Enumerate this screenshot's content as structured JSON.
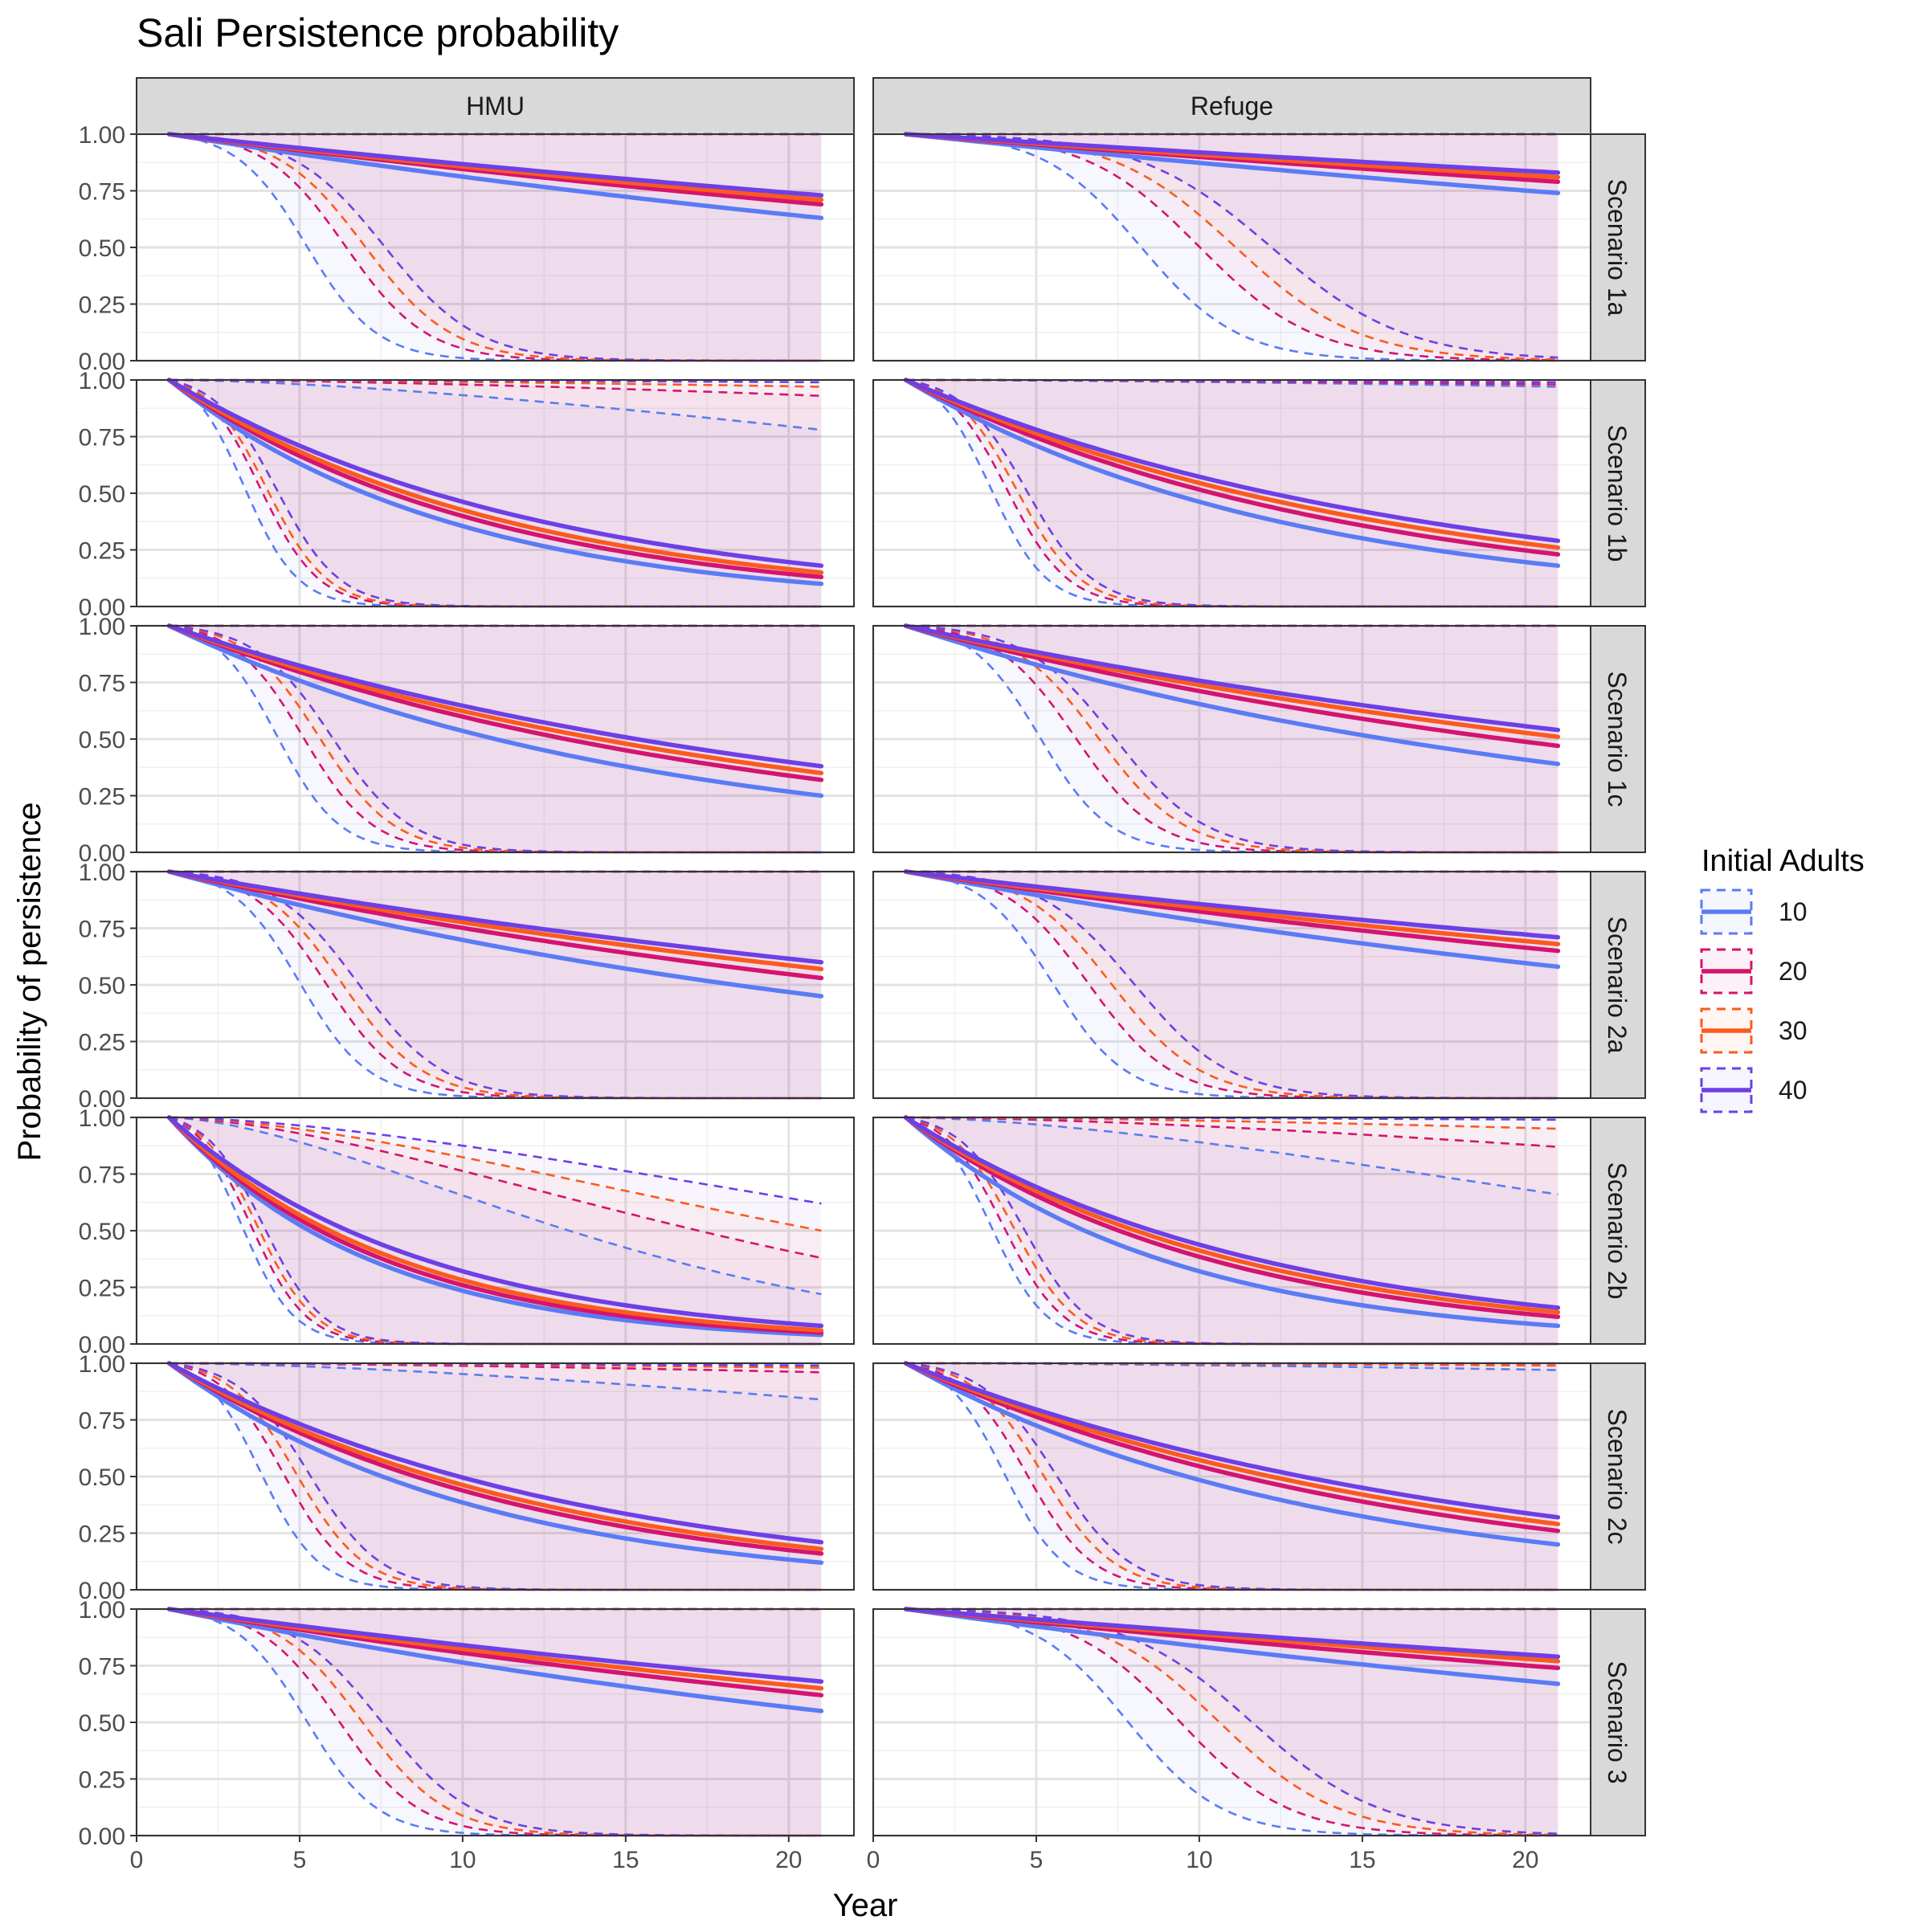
{
  "chart_data": {
    "type": "line",
    "title": "Sali Persistence probability",
    "xlabel": "Year",
    "ylabel": "Probability of persistence",
    "xlim": [
      0,
      22
    ],
    "ylim": [
      0,
      1
    ],
    "x_ticks": [
      0,
      5,
      10,
      15,
      20
    ],
    "y_ticks": [
      "0.00",
      "0.25",
      "0.50",
      "0.75",
      "1.00"
    ],
    "x_range": [
      1,
      21
    ],
    "grid": true,
    "legend_placement": "right",
    "legend": {
      "title": "Initial Adults",
      "entries": [
        {
          "label": "10",
          "color": "#5B7BF5"
        },
        {
          "label": "20",
          "color": "#D4146E"
        },
        {
          "label": "30",
          "color": "#FB5A1E"
        },
        {
          "label": "40",
          "color": "#6E3FE6"
        }
      ]
    },
    "columns": [
      "HMU",
      "Refuge"
    ],
    "rows": [
      "Scenario 1a",
      "Scenario 1b",
      "Scenario 1c",
      "Scenario 2a",
      "Scenario 2b",
      "Scenario 2c",
      "Scenario 3"
    ],
    "series_style": "solid line = mean persistence, dashed lines = upper/lower bounds, shaded ribbon between bounds",
    "series_meta": [
      {
        "init": 10,
        "mean_half_life_factor": 0.72,
        "lower_half_life_factor": 0.75
      },
      {
        "init": 20,
        "mean_half_life_factor": 0.9,
        "lower_half_life_factor": 0.9
      },
      {
        "init": 30,
        "mean_half_life_factor": 0.98,
        "lower_half_life_factor": 1.0
      },
      {
        "init": 40,
        "mean_half_life_factor": 1.06,
        "lower_half_life_factor": 1.1
      }
    ],
    "panels": [
      {
        "row": "Scenario 1a",
        "col": "HMU",
        "mean_at_21": [
          0.63,
          0.69,
          0.71,
          0.73
        ],
        "lower_mid_year": [
          5.2,
          6.4,
          7.0,
          7.6
        ],
        "upper_at_21": [
          1.0,
          1.0,
          1.0,
          1.0
        ]
      },
      {
        "row": "Scenario 1a",
        "col": "Refuge",
        "mean_at_21": [
          0.74,
          0.79,
          0.81,
          0.83
        ],
        "lower_mid_year": [
          8.2,
          10.0,
          11.1,
          12.2
        ],
        "upper_at_21": [
          1.0,
          1.0,
          1.0,
          1.0
        ]
      },
      {
        "row": "Scenario 1b",
        "col": "HMU",
        "mean_at_21": [
          0.1,
          0.13,
          0.15,
          0.18
        ],
        "lower_mid_year": [
          3.3,
          3.8,
          4.0,
          4.3
        ],
        "upper_at_21": [
          0.78,
          0.93,
          0.97,
          0.99
        ]
      },
      {
        "row": "Scenario 1b",
        "col": "Refuge",
        "mean_at_21": [
          0.18,
          0.23,
          0.26,
          0.29
        ],
        "lower_mid_year": [
          3.6,
          4.1,
          4.4,
          4.7
        ],
        "upper_at_21": [
          0.97,
          0.98,
          0.99,
          0.99
        ]
      },
      {
        "row": "Scenario 1c",
        "col": "HMU",
        "mean_at_21": [
          0.25,
          0.32,
          0.35,
          0.38
        ],
        "lower_mid_year": [
          4.3,
          5.1,
          5.6,
          6.0
        ],
        "upper_at_21": [
          1.0,
          1.0,
          1.0,
          1.0
        ]
      },
      {
        "row": "Scenario 1c",
        "col": "Refuge",
        "mean_at_21": [
          0.39,
          0.47,
          0.51,
          0.54
        ],
        "lower_mid_year": [
          5.1,
          6.2,
          6.9,
          7.4
        ],
        "upper_at_21": [
          1.0,
          1.0,
          1.0,
          1.0
        ]
      },
      {
        "row": "Scenario 2a",
        "col": "HMU",
        "mean_at_21": [
          0.45,
          0.53,
          0.57,
          0.6
        ],
        "lower_mid_year": [
          5.0,
          5.8,
          6.3,
          6.8
        ],
        "upper_at_21": [
          1.0,
          1.0,
          1.0,
          1.0
        ]
      },
      {
        "row": "Scenario 2a",
        "col": "Refuge",
        "mean_at_21": [
          0.58,
          0.65,
          0.68,
          0.71
        ],
        "lower_mid_year": [
          5.5,
          6.6,
          7.3,
          8.0
        ],
        "upper_at_21": [
          1.0,
          1.0,
          1.0,
          1.0
        ]
      },
      {
        "row": "Scenario 2b",
        "col": "HMU",
        "mean_at_21": [
          0.04,
          0.05,
          0.06,
          0.08
        ],
        "lower_mid_year": [
          3.2,
          3.5,
          3.7,
          3.9
        ],
        "upper_at_21": [
          0.22,
          0.38,
          0.5,
          0.62
        ]
      },
      {
        "row": "Scenario 2b",
        "col": "Refuge",
        "mean_at_21": [
          0.08,
          0.12,
          0.14,
          0.16
        ],
        "lower_mid_year": [
          3.6,
          4.0,
          4.3,
          4.6
        ],
        "upper_at_21": [
          0.66,
          0.87,
          0.95,
          0.99
        ]
      },
      {
        "row": "Scenario 2c",
        "col": "HMU",
        "mean_at_21": [
          0.12,
          0.16,
          0.18,
          0.21
        ],
        "lower_mid_year": [
          3.8,
          4.5,
          4.9,
          5.3
        ],
        "upper_at_21": [
          0.84,
          0.96,
          0.98,
          0.99
        ]
      },
      {
        "row": "Scenario 2c",
        "col": "Refuge",
        "mean_at_21": [
          0.2,
          0.26,
          0.29,
          0.32
        ],
        "lower_mid_year": [
          4.0,
          4.7,
          5.2,
          5.6
        ],
        "upper_at_21": [
          0.97,
          0.99,
          0.99,
          1.0
        ]
      },
      {
        "row": "Scenario 3",
        "col": "HMU",
        "mean_at_21": [
          0.55,
          0.62,
          0.65,
          0.68
        ],
        "lower_mid_year": [
          5.2,
          6.2,
          6.9,
          7.5
        ],
        "upper_at_21": [
          1.0,
          1.0,
          1.0,
          1.0
        ]
      },
      {
        "row": "Scenario 3",
        "col": "Refuge",
        "mean_at_21": [
          0.67,
          0.74,
          0.77,
          0.79
        ],
        "lower_mid_year": [
          7.8,
          9.4,
          10.6,
          11.6
        ],
        "upper_at_21": [
          1.0,
          1.0,
          1.0,
          1.0
        ]
      }
    ]
  }
}
